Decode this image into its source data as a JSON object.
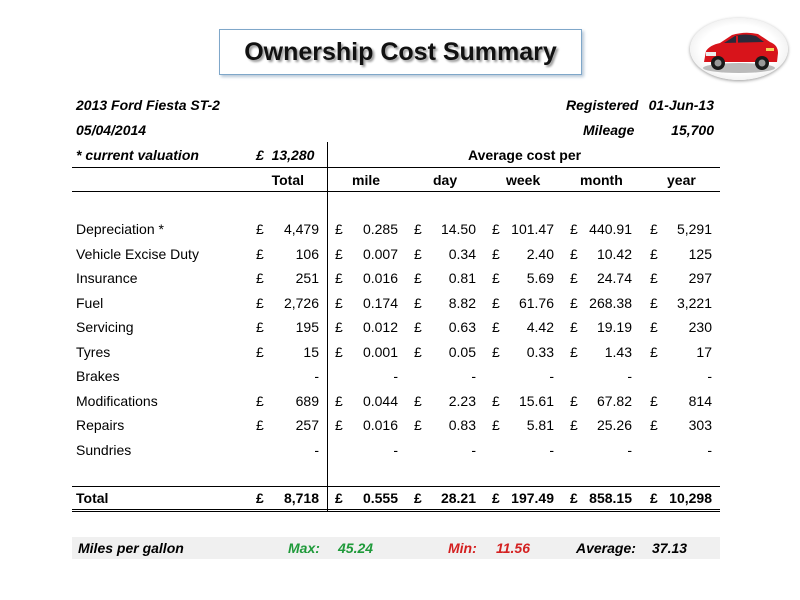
{
  "title": "Ownership Cost Summary",
  "car": {
    "model": "2013 Ford Fiesta ST-2",
    "date": "05/04/2014",
    "registered_label": "Registered",
    "registered_value": "01-Jun-13",
    "mileage_label": "Mileage",
    "mileage_value": "15,700",
    "valuation_label": "* current valuation",
    "valuation_value": "£  13,280"
  },
  "table": {
    "group_header": "Average cost per",
    "columns": [
      "Total",
      "mile",
      "day",
      "week",
      "month",
      "year"
    ],
    "currency": "£",
    "rows": [
      {
        "label": "Depreciation *",
        "values": [
          "4,479",
          "0.285",
          "14.50",
          "101.47",
          "440.91",
          "5,291"
        ]
      },
      {
        "label": "Vehicle Excise Duty",
        "values": [
          "106",
          "0.007",
          "0.34",
          "2.40",
          "10.42",
          "125"
        ]
      },
      {
        "label": "Insurance",
        "values": [
          "251",
          "0.016",
          "0.81",
          "5.69",
          "24.74",
          "297"
        ]
      },
      {
        "label": "Fuel",
        "values": [
          "2,726",
          "0.174",
          "8.82",
          "61.76",
          "268.38",
          "3,221"
        ]
      },
      {
        "label": "Servicing",
        "values": [
          "195",
          "0.012",
          "0.63",
          "4.42",
          "19.19",
          "230"
        ]
      },
      {
        "label": "Tyres",
        "values": [
          "15",
          "0.001",
          "0.05",
          "0.33",
          "1.43",
          "17"
        ]
      },
      {
        "label": "Brakes",
        "values": [
          "-",
          "-",
          "-",
          "-",
          "-",
          "-"
        ]
      },
      {
        "label": "Modifications",
        "values": [
          "689",
          "0.044",
          "2.23",
          "15.61",
          "67.82",
          "814"
        ]
      },
      {
        "label": "Repairs",
        "values": [
          "257",
          "0.016",
          "0.83",
          "5.81",
          "25.26",
          "303"
        ]
      },
      {
        "label": "Sundries",
        "values": [
          "-",
          "-",
          "-",
          "-",
          "-",
          "-"
        ]
      }
    ],
    "total": {
      "label": "Total",
      "values": [
        "8,718",
        "0.555",
        "28.21",
        "197.49",
        "858.15",
        "10,298"
      ]
    }
  },
  "mpg": {
    "label": "Miles per gallon",
    "max_label": "Max:",
    "max_value": "45.24",
    "max_color": "#1f9a3a",
    "min_label": "Min:",
    "min_value": "11.56",
    "min_color": "#d42020",
    "avg_label": "Average:",
    "avg_value": "37.13"
  },
  "icons": {
    "car": "red-hatchback-car-icon"
  }
}
